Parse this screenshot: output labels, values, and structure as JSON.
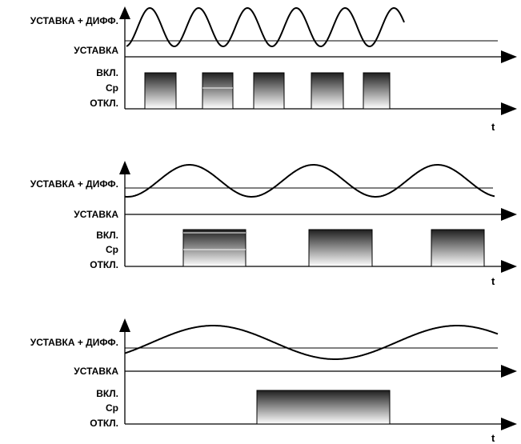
{
  "labels": {
    "setpoint_plus_diff": "УСТАВКА + ДИФФ.",
    "setpoint": "УСТАВКА",
    "on": "ВКЛ.",
    "avg": "Ср",
    "off": "ОТКЛ.",
    "time": "t"
  },
  "colors": {
    "line": "#000000",
    "pulse_top": "#1f1f1f",
    "pulse_bottom": "#ffffff"
  },
  "panels": [
    {
      "name": "fast-oscillation",
      "pulse_count": 5
    },
    {
      "name": "medium-oscillation",
      "pulse_count": 3
    },
    {
      "name": "slow-oscillation",
      "pulse_count": 1
    }
  ]
}
